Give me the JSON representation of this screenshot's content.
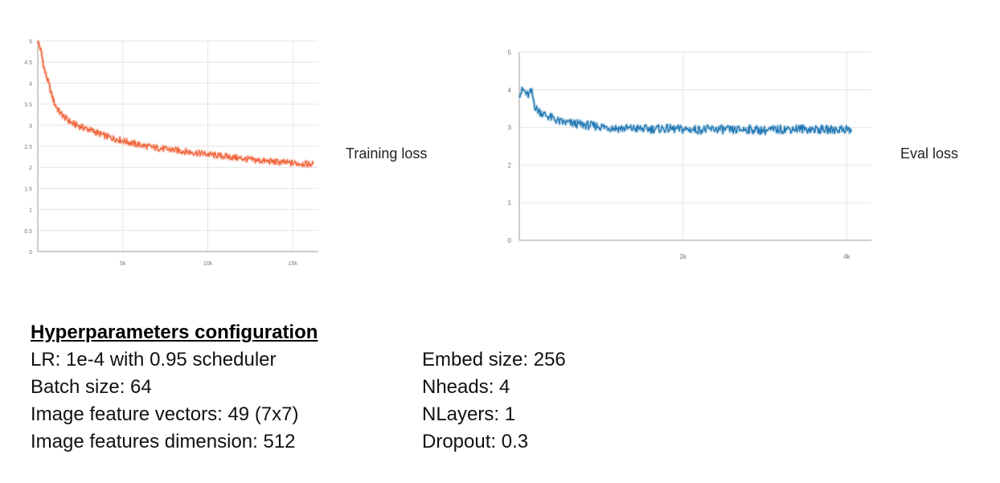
{
  "chart_data": [
    {
      "type": "line",
      "label": "Training loss",
      "color": "#f0643a",
      "x_ticks": [
        5000,
        10000,
        15000
      ],
      "x_tick_labels": [
        "5k",
        "10k",
        "15k"
      ],
      "y_ticks": [
        0,
        0.5,
        1,
        1.5,
        2,
        2.5,
        3,
        3.5,
        4,
        4.5,
        5
      ],
      "y_tick_labels": [
        "0",
        "0.5",
        "1",
        "1.5",
        "2",
        "2.5",
        "3",
        "3.5",
        "4",
        "4.5",
        "5"
      ],
      "xlim": [
        0,
        16500
      ],
      "ylim": [
        0,
        5
      ],
      "grid": true,
      "series": [
        {
          "x": [
            0,
            200,
            400,
            600,
            800,
            1000,
            1300,
            1600,
            2000,
            2500,
            3000,
            3500,
            4000,
            4500,
            5000,
            5500,
            6000,
            7000,
            8000,
            9000,
            10000,
            11000,
            12000,
            13000,
            14000,
            15000,
            16200
          ],
          "values": [
            5.0,
            4.75,
            4.3,
            4.05,
            3.75,
            3.5,
            3.3,
            3.18,
            3.05,
            2.97,
            2.9,
            2.82,
            2.74,
            2.68,
            2.63,
            2.58,
            2.53,
            2.46,
            2.41,
            2.36,
            2.31,
            2.26,
            2.21,
            2.16,
            2.13,
            2.1,
            2.07
          ]
        }
      ]
    },
    {
      "type": "line",
      "label": "Eval loss",
      "color": "#1f77b4",
      "x_ticks": [
        2000,
        4000
      ],
      "x_tick_labels": [
        "2k",
        "4k"
      ],
      "y_ticks": [
        0,
        1,
        2,
        3,
        4,
        5
      ],
      "y_tick_labels": [
        "0",
        "1",
        "2",
        "3",
        "4",
        "5"
      ],
      "xlim": [
        0,
        4300
      ],
      "ylim": [
        0,
        5
      ],
      "grid": true,
      "series": [
        {
          "x": [
            0,
            50,
            100,
            150,
            200,
            300,
            400,
            500,
            600,
            800,
            1000,
            1200,
            1400,
            1600,
            1800,
            2000,
            2200,
            2400,
            2600,
            2800,
            3000,
            3200,
            3400,
            3600,
            3800,
            4000,
            4060
          ],
          "values": [
            3.9,
            4.0,
            3.85,
            3.95,
            3.5,
            3.35,
            3.25,
            3.15,
            3.12,
            3.07,
            3.02,
            2.98,
            2.97,
            2.96,
            2.97,
            2.95,
            2.94,
            2.96,
            2.93,
            2.95,
            2.92,
            2.95,
            2.97,
            2.95,
            2.94,
            2.96,
            2.9
          ]
        }
      ]
    }
  ],
  "hyperparameters": {
    "title": "Hyperparameters configuration",
    "left": [
      "LR: 1e-4 with 0.95 scheduler",
      "Batch size: 64",
      "Image feature vectors: 49 (7x7)",
      "Image features dimension: 512"
    ],
    "right": [
      "Embed size: 256",
      "Nheads: 4",
      "NLayers: 1",
      "Dropout: 0.3"
    ]
  }
}
